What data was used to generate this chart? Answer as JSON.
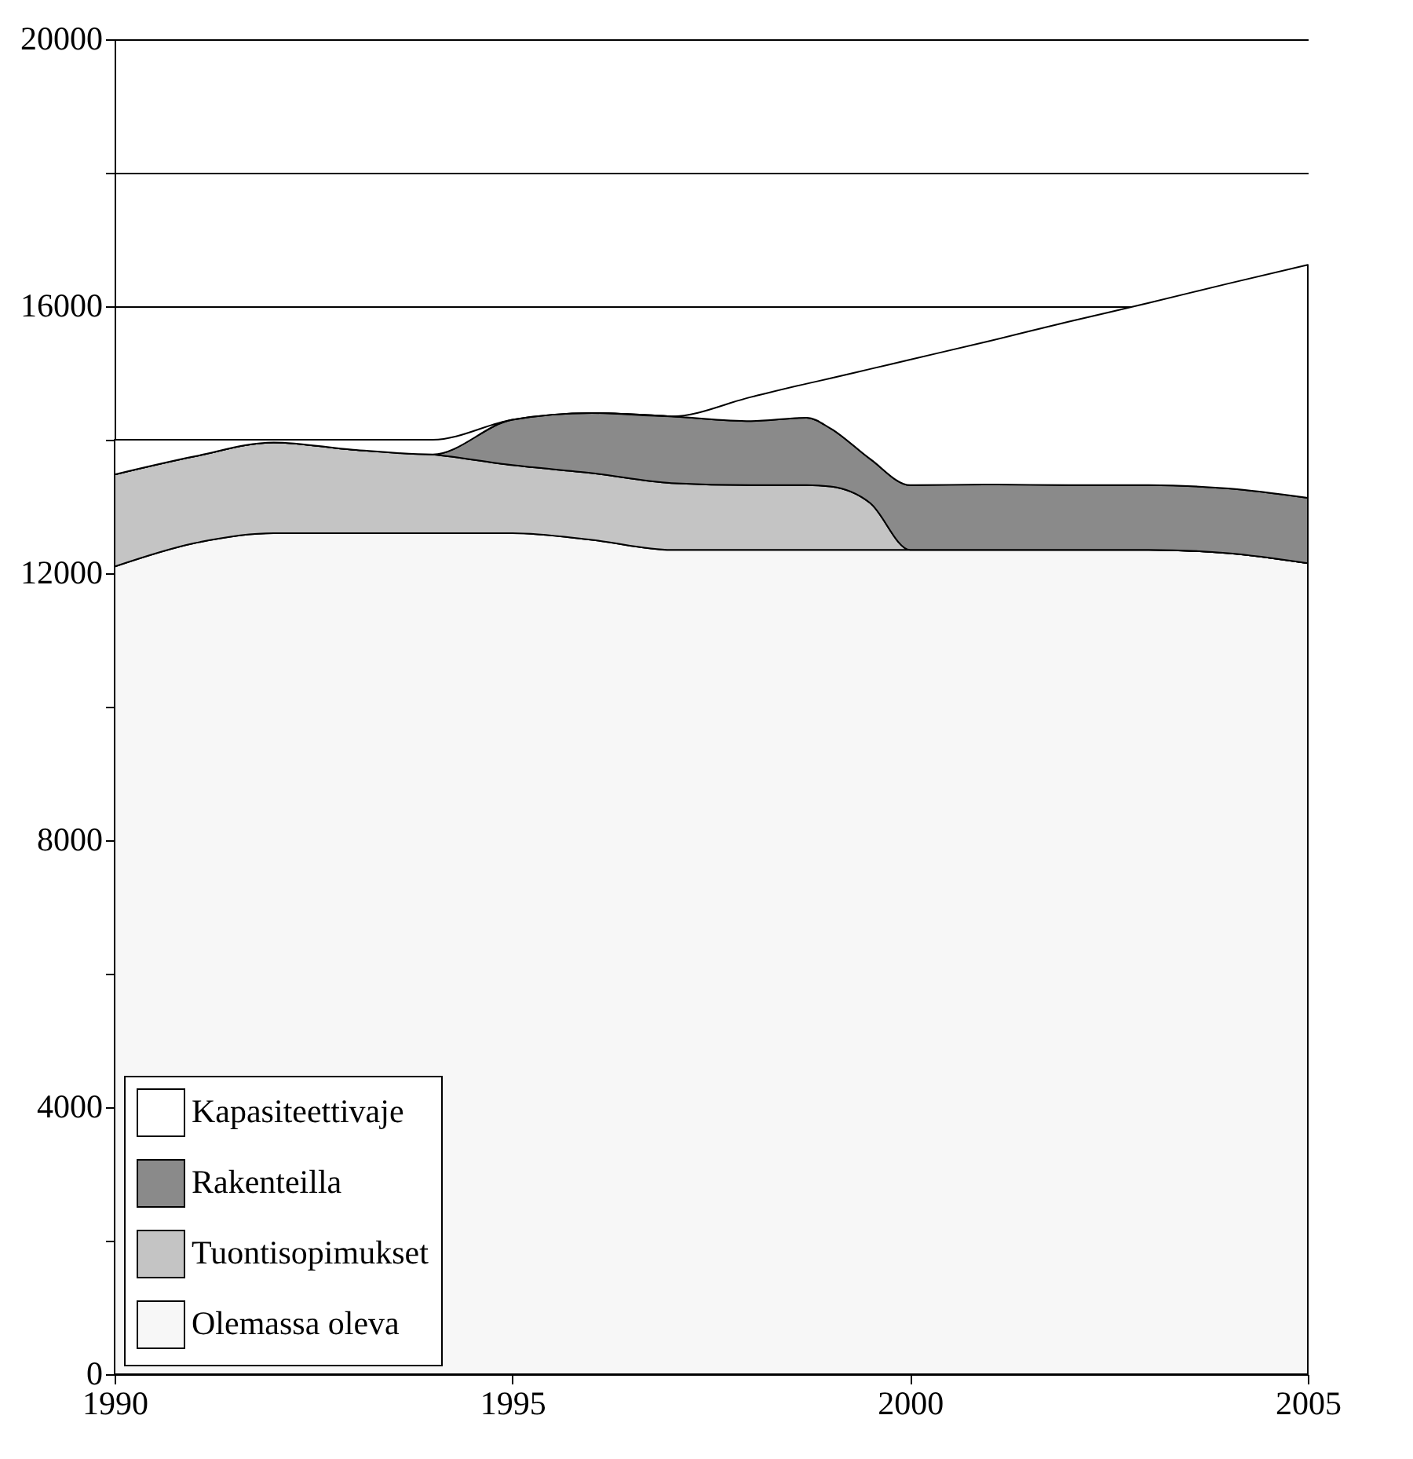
{
  "chart_data": {
    "type": "area",
    "stacked": true,
    "x": [
      1990,
      1991,
      1992,
      1993,
      1994,
      1995,
      1996,
      1997,
      1998,
      1998.7,
      1999,
      1999.5,
      2000,
      2001,
      2002,
      2003,
      2004,
      2005
    ],
    "series": [
      {
        "name": "Olemassa oleva",
        "color": "#f7f7f7",
        "values": [
          12100,
          12450,
          12600,
          12600,
          12600,
          12600,
          12500,
          12350,
          12350,
          12350,
          12350,
          12350,
          12350,
          12350,
          12350,
          12350,
          12300,
          12150
        ]
      },
      {
        "name": "Tuontisopimukset",
        "color": "#c4c4c4",
        "values": [
          1380,
          1300,
          1360,
          1250,
          1180,
          1020,
          1000,
          1000,
          970,
          970,
          950,
          700,
          0,
          0,
          0,
          0,
          0,
          0
        ]
      },
      {
        "name": "Rakenteilla",
        "color": "#8a8a8a",
        "values": [
          0,
          0,
          0,
          0,
          0,
          680,
          900,
          1000,
          960,
          1010,
          870,
          660,
          970,
          980,
          970,
          970,
          970,
          980
        ]
      },
      {
        "name": "Kapasiteettivaje",
        "color": "#ffffff",
        "values": [
          520,
          250,
          40,
          150,
          220,
          0,
          0,
          0,
          360,
          510,
          750,
          1350,
          1880,
          2150,
          2450,
          2730,
          3070,
          3490
        ]
      }
    ],
    "xlim": [
      1990,
      2005
    ],
    "xticks": [
      1990,
      1995,
      2000,
      2005
    ],
    "ylim": [
      0,
      20000
    ],
    "yticks": [
      0,
      {
        "value": 2000,
        "label": null
      },
      4000,
      {
        "value": 6000,
        "label": null
      },
      8000,
      {
        "value": 10000,
        "label": null
      },
      12000,
      {
        "value": 14000,
        "label": null
      },
      16000,
      {
        "value": 18000,
        "label": null
      },
      20000
    ],
    "grid": "y",
    "legend": "bottom left"
  }
}
